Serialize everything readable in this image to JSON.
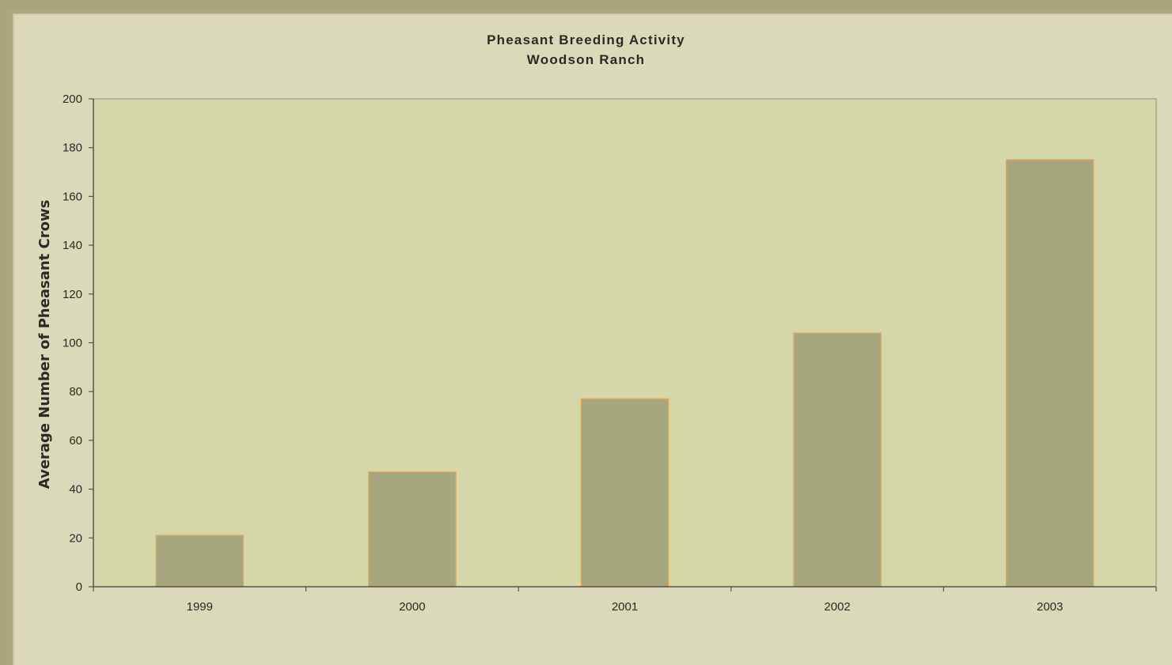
{
  "chart_data": {
    "type": "bar",
    "title": "Pheasant Breeding Activity",
    "subtitle": "Woodson Ranch",
    "xlabel": "",
    "ylabel": "Average Number of Pheasant Crows",
    "categories": [
      "1999",
      "2000",
      "2001",
      "2002",
      "2003"
    ],
    "values": [
      21,
      47,
      77,
      104,
      175
    ],
    "ylim": [
      0,
      200
    ],
    "yticks": [
      0,
      20,
      40,
      60,
      80,
      100,
      120,
      140,
      160,
      180,
      200
    ],
    "grid": false,
    "legend": "none"
  },
  "colors": {
    "background": "#dad9b9",
    "plot_area": "#d6d7a9",
    "bar_fill": "#a6a67e",
    "bar_edge": "#d9a85a",
    "axis": "#55554a",
    "frame": "#a6a57a"
  }
}
